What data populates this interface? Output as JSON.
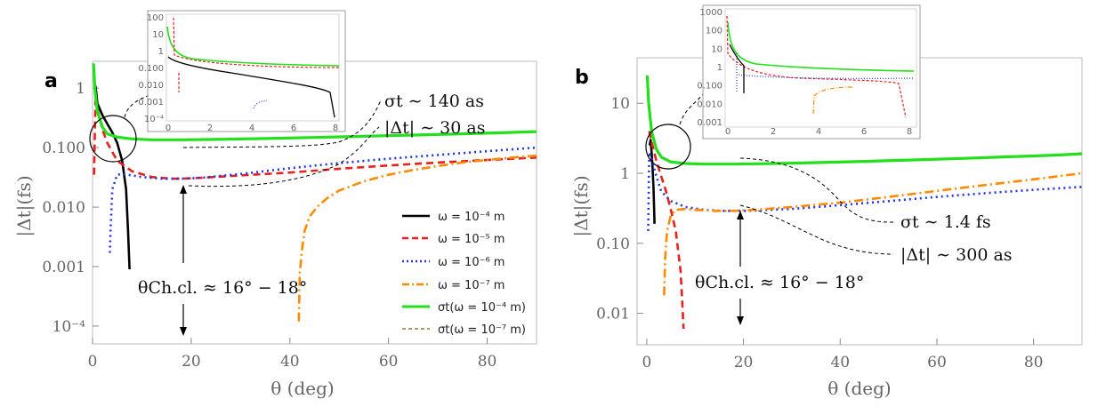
{
  "chart_data": [
    {
      "panel": "a",
      "type": "line",
      "xlabel": "θ (deg)",
      "ylabel": "|Δt|(fs)",
      "xlim": [
        0,
        90
      ],
      "ylim_log10": [
        -4.3,
        0.45
      ],
      "xticks": [
        {
          "v": 0,
          "label": "0"
        },
        {
          "v": 20,
          "label": "20"
        },
        {
          "v": 40,
          "label": "40"
        },
        {
          "v": 60,
          "label": "60"
        },
        {
          "v": 80,
          "label": "80"
        }
      ],
      "yticks": [
        {
          "v": 1,
          "label": "1"
        },
        {
          "v": 0.1,
          "label": "0.100"
        },
        {
          "v": 0.01,
          "label": "0.010"
        },
        {
          "v": 0.001,
          "label": "0.001"
        },
        {
          "v": 0.0001,
          "label": "10⁻⁴"
        }
      ],
      "series": [
        {
          "name": "ω = 10⁻⁴ m",
          "color": "#000000",
          "style": "solid",
          "width": 2.6,
          "x": [
            0.6,
            1,
            2,
            3,
            4,
            5,
            6,
            6.8,
            7.2,
            7.5
          ],
          "y": [
            1.1,
            0.55,
            0.35,
            0.25,
            0.18,
            0.12,
            0.06,
            0.02,
            0.004,
            0.0009
          ]
        },
        {
          "name": "ω = 10⁻⁵ m",
          "color": "#e8211c",
          "style": "dash",
          "width": 2.6,
          "x": [
            0.3,
            0.6,
            1,
            2,
            3,
            5,
            8,
            12,
            16,
            18,
            22,
            30,
            40,
            50,
            60,
            70,
            80,
            90
          ],
          "y": [
            0.035,
            0.6,
            0.45,
            0.2,
            0.12,
            0.06,
            0.04,
            0.032,
            0.03,
            0.03,
            0.031,
            0.034,
            0.038,
            0.044,
            0.05,
            0.056,
            0.062,
            0.068
          ]
        },
        {
          "name": "ω = 10⁻⁶ m",
          "color": "#1f35e0",
          "style": "dot",
          "width": 2.6,
          "x": [
            3.5,
            3.7,
            4,
            5,
            6,
            8,
            10,
            14,
            18,
            22,
            30,
            40,
            50,
            60,
            70,
            80,
            90
          ],
          "y": [
            0.0017,
            0.005,
            0.02,
            0.035,
            0.036,
            0.034,
            0.032,
            0.03,
            0.03,
            0.031,
            0.036,
            0.045,
            0.055,
            0.065,
            0.075,
            0.087,
            0.1
          ]
        },
        {
          "name": "ω = 10⁻⁷ m",
          "color": "#ff8a00",
          "style": "dashdot",
          "width": 2.6,
          "x": [
            41.8,
            42,
            42.5,
            43,
            44,
            46,
            48,
            50,
            55,
            60,
            65,
            70,
            75,
            80,
            85,
            90
          ],
          "y": [
            0.00012,
            0.0008,
            0.002,
            0.004,
            0.007,
            0.011,
            0.015,
            0.019,
            0.027,
            0.035,
            0.042,
            0.049,
            0.056,
            0.062,
            0.068,
            0.073
          ]
        },
        {
          "name": "σt(ω = 10⁻⁴ m)",
          "color": "#22e01a",
          "style": "solid",
          "width": 3.2,
          "x": [
            0.2,
            0.5,
            1,
            2,
            3,
            5,
            8,
            12,
            18,
            25,
            35,
            45,
            55,
            65,
            75,
            85,
            90
          ],
          "y": [
            2.6,
            0.9,
            0.4,
            0.22,
            0.17,
            0.15,
            0.14,
            0.135,
            0.135,
            0.137,
            0.142,
            0.148,
            0.155,
            0.162,
            0.17,
            0.18,
            0.185
          ]
        },
        {
          "name": "σt(ω = 10⁻⁷ m)",
          "color": "#8a5a1a",
          "style": "shortdash",
          "width": 1.2,
          "x": [],
          "y": []
        }
      ],
      "annotations": [
        {
          "text": "σt ∼ 140 as"
        },
        {
          "text": "|Δt| ∼ 30 as"
        },
        {
          "text": "θCh.cl. ≈ 16° − 18°"
        }
      ],
      "inset": {
        "xticks": [
          "0",
          "2",
          "4",
          "6",
          "8"
        ],
        "yticks": [
          "100",
          "10",
          "1",
          "0.100",
          "0.010",
          "0.001",
          "10⁻⁴"
        ]
      }
    },
    {
      "panel": "b",
      "type": "line",
      "xlabel": "θ (deg)",
      "ylabel": "|Δt|(fs)",
      "xlim": [
        -2,
        90
      ],
      "ylim_log10": [
        -2.45,
        1.65
      ],
      "xticks": [
        {
          "v": 0,
          "label": "0"
        },
        {
          "v": 20,
          "label": "20"
        },
        {
          "v": 40,
          "label": "40"
        },
        {
          "v": 60,
          "label": "60"
        },
        {
          "v": 80,
          "label": "80"
        }
      ],
      "yticks": [
        {
          "v": 10,
          "label": "10"
        },
        {
          "v": 1,
          "label": "1"
        },
        {
          "v": 0.1,
          "label": "0.10"
        },
        {
          "v": 0.01,
          "label": "0.01"
        }
      ],
      "series": [
        {
          "name": "ω = 10⁻⁴ m",
          "color": "#000000",
          "style": "solid",
          "width": 2.6,
          "x": [
            0.6,
            0.8,
            1,
            1.2,
            1.4,
            1.6
          ],
          "y": [
            2.5,
            3,
            2,
            1.2,
            0.6,
            0.19
          ]
        },
        {
          "name": "ω = 10⁻⁵ m",
          "color": "#e8211c",
          "style": "dash",
          "width": 2.6,
          "x": [
            0.5,
            1,
            2,
            3,
            4,
            5,
            6,
            7,
            7.4,
            7.6
          ],
          "y": [
            4,
            2.8,
            1.5,
            0.9,
            0.55,
            0.3,
            0.15,
            0.04,
            0.012,
            0.006
          ]
        },
        {
          "name": "ω = 10⁻⁶ m",
          "color": "#1f35e0",
          "style": "dot",
          "width": 2.6,
          "x": [
            0.3,
            0.5,
            1,
            2,
            3,
            5,
            8,
            12,
            16,
            20,
            30,
            40,
            50,
            60,
            70,
            80,
            90
          ],
          "y": [
            0.15,
            2,
            1.6,
            0.9,
            0.55,
            0.4,
            0.33,
            0.3,
            0.29,
            0.29,
            0.31,
            0.35,
            0.4,
            0.46,
            0.52,
            0.58,
            0.64
          ]
        },
        {
          "name": "ω = 10⁻⁷ m",
          "color": "#ff8a00",
          "style": "dashdot",
          "width": 2.6,
          "x": [
            3.6,
            3.8,
            4.2,
            5,
            6,
            8,
            10,
            14,
            18,
            22,
            30,
            40,
            50,
            60,
            70,
            80,
            90
          ],
          "y": [
            0.018,
            0.06,
            0.15,
            0.25,
            0.3,
            0.31,
            0.3,
            0.29,
            0.29,
            0.3,
            0.33,
            0.38,
            0.46,
            0.56,
            0.68,
            0.82,
            1.0
          ]
        },
        {
          "name": "σt(ω = 10⁻⁴ m)",
          "color": "#22e01a",
          "style": "solid",
          "width": 3.2,
          "x": [
            0.1,
            0.4,
            1,
            2,
            3,
            5,
            8,
            12,
            18,
            25,
            35,
            45,
            55,
            65,
            75,
            85,
            90
          ],
          "y": [
            25,
            10,
            4,
            2.2,
            1.7,
            1.45,
            1.38,
            1.35,
            1.35,
            1.37,
            1.42,
            1.48,
            1.55,
            1.63,
            1.72,
            1.82,
            1.9
          ]
        }
      ],
      "annotations": [
        {
          "text": "σt ∼ 1.4 fs"
        },
        {
          "text": "|Δt| ∼ 300 as"
        },
        {
          "text": "θCh.cl. ≈ 16° − 18°"
        }
      ],
      "inset": {
        "xticks": [
          "0",
          "2",
          "4",
          "6",
          "8"
        ],
        "yticks": [
          "1000",
          "100",
          "10",
          "1",
          "0.100",
          "0.010",
          "0.001"
        ]
      }
    }
  ],
  "legend": {
    "items": [
      "ω = 10⁻⁴ m",
      "ω = 10⁻⁵ m",
      "ω = 10⁻⁶ m",
      "ω = 10⁻⁷ m",
      "σt(ω = 10⁻⁴ m)",
      "σt(ω = 10⁻⁷ m)"
    ]
  }
}
